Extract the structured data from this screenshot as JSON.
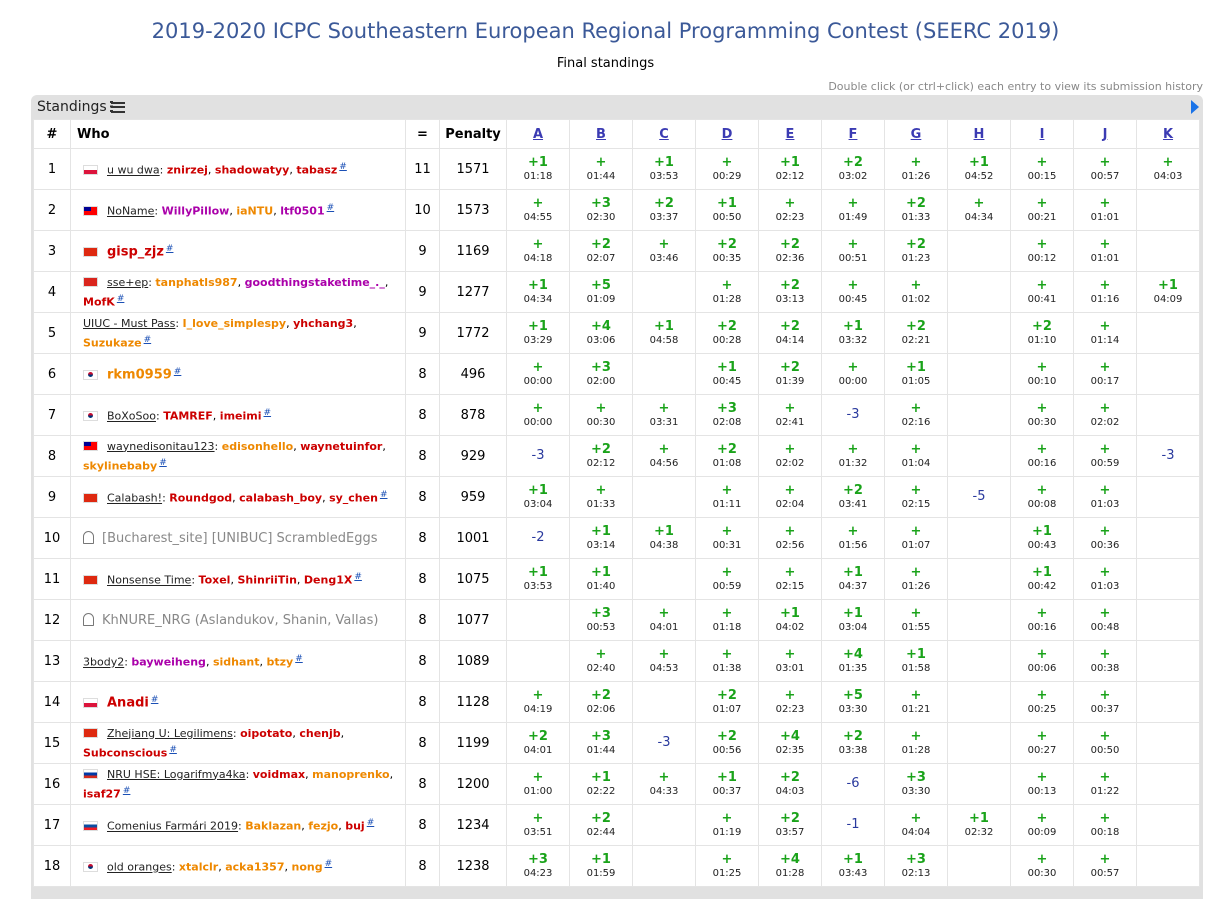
{
  "title": "2019-2020 ICPC Southeastern European Regional Programming Contest (SEERC 2019)",
  "subtitle": "Final standings",
  "hint": "Double click (or ctrl+click) each entry to view its submission history",
  "panel": {
    "label": "Standings",
    "menu_icon": "list-icon",
    "next_icon": "arrow-right-icon"
  },
  "columns": {
    "rank": "#",
    "who": "Who",
    "solved": "=",
    "penalty": "Penalty"
  },
  "problems": [
    "A",
    "B",
    "C",
    "D",
    "E",
    "F",
    "G",
    "H",
    "I",
    "J",
    "K"
  ],
  "colors": {
    "title": "#3b5998",
    "accepted": "#1aa31a",
    "rejected": "#2a3a9e",
    "red_rating": "#dd0000",
    "orange_rating": "#ee8800",
    "purple_rating": "#aa00aa"
  },
  "rows": [
    {
      "rank": "1",
      "flag": "pl",
      "team": "u wu dwa",
      "members": [
        {
          "n": "znirzej",
          "c": "#cc0000"
        },
        {
          "n": "shadowatyy",
          "c": "#cc0000"
        },
        {
          "n": "tabasz",
          "c": "#cc0000"
        }
      ],
      "solved": "11",
      "penalty": "1571",
      "cells": [
        [
          "+1",
          "01:18"
        ],
        [
          "+",
          "01:44"
        ],
        [
          "+1",
          "03:53"
        ],
        [
          "+",
          "00:29"
        ],
        [
          "+1",
          "02:12"
        ],
        [
          "+2",
          "03:02"
        ],
        [
          "+",
          "01:26"
        ],
        [
          "+1",
          "04:52"
        ],
        [
          "+",
          "00:15"
        ],
        [
          "+",
          "00:57"
        ],
        [
          "+",
          "04:03"
        ]
      ]
    },
    {
      "rank": "2",
      "flag": "tw",
      "team": "NoName",
      "members": [
        {
          "n": "WillyPillow",
          "c": "#aa00aa"
        },
        {
          "n": "iaNTU",
          "c": "#ee8800"
        },
        {
          "n": "ltf0501",
          "c": "#aa00aa"
        }
      ],
      "solved": "10",
      "penalty": "1573",
      "cells": [
        [
          "+",
          "04:55"
        ],
        [
          "+3",
          "02:30"
        ],
        [
          "+2",
          "03:37"
        ],
        [
          "+1",
          "00:50"
        ],
        [
          "+",
          "02:23"
        ],
        [
          "+",
          "01:49"
        ],
        [
          "+2",
          "01:33"
        ],
        [
          "+",
          "04:34"
        ],
        [
          "+",
          "00:21"
        ],
        [
          "+",
          "01:01"
        ],
        null
      ]
    },
    {
      "rank": "3",
      "flag": "cn",
      "team": "gisp_zjz",
      "big": true,
      "team_color": "#cc0000",
      "members": [],
      "solved": "9",
      "penalty": "1169",
      "cells": [
        [
          "+",
          "04:18"
        ],
        [
          "+2",
          "02:07"
        ],
        [
          "+",
          "03:46"
        ],
        [
          "+2",
          "00:35"
        ],
        [
          "+2",
          "02:36"
        ],
        [
          "+",
          "00:51"
        ],
        [
          "+2",
          "01:23"
        ],
        null,
        [
          "+",
          "00:12"
        ],
        [
          "+",
          "01:01"
        ],
        null
      ]
    },
    {
      "rank": "4",
      "flag": "vn",
      "team": "sse+ep",
      "members": [
        {
          "n": "tanphatls987",
          "c": "#ee8800"
        },
        {
          "n": "goodthingstaketime_._",
          "c": "#aa00aa"
        },
        {
          "n": "MofK",
          "c": "#cc0000"
        }
      ],
      "solved": "9",
      "penalty": "1277",
      "cells": [
        [
          "+1",
          "04:34"
        ],
        [
          "+5",
          "01:09"
        ],
        null,
        [
          "+",
          "01:28"
        ],
        [
          "+2",
          "03:13"
        ],
        [
          "+",
          "00:45"
        ],
        [
          "+",
          "01:02"
        ],
        null,
        [
          "+",
          "00:41"
        ],
        [
          "+",
          "01:16"
        ],
        [
          "+1",
          "04:09"
        ]
      ]
    },
    {
      "rank": "5",
      "flag": "",
      "team": "UIUC - Must Pass",
      "members": [
        {
          "n": "I_love_simplespy",
          "c": "#ee8800"
        },
        {
          "n": "yhchang3",
          "c": "#cc0000"
        },
        {
          "n": "Suzukaze",
          "c": "#ee8800"
        }
      ],
      "solved": "9",
      "penalty": "1772",
      "cells": [
        [
          "+1",
          "03:29"
        ],
        [
          "+4",
          "03:06"
        ],
        [
          "+1",
          "04:58"
        ],
        [
          "+2",
          "00:28"
        ],
        [
          "+2",
          "04:14"
        ],
        [
          "+1",
          "03:32"
        ],
        [
          "+2",
          "02:21"
        ],
        null,
        [
          "+2",
          "01:10"
        ],
        [
          "+",
          "01:14"
        ],
        null
      ]
    },
    {
      "rank": "6",
      "flag": "kr",
      "team": "rkm0959",
      "big": true,
      "team_color": "#ee8800",
      "members": [],
      "solved": "8",
      "penalty": "496",
      "cells": [
        [
          "+",
          "00:00"
        ],
        [
          "+3",
          "02:00"
        ],
        null,
        [
          "+1",
          "00:45"
        ],
        [
          "+2",
          "01:39"
        ],
        [
          "+",
          "00:00"
        ],
        [
          "+1",
          "01:05"
        ],
        null,
        [
          "+",
          "00:10"
        ],
        [
          "+",
          "00:17"
        ],
        null
      ]
    },
    {
      "rank": "7",
      "flag": "kr",
      "team": "BoXoSoo",
      "members": [
        {
          "n": "TAMREF",
          "c": "#cc0000"
        },
        {
          "n": "imeimi",
          "c": "#cc0000"
        }
      ],
      "solved": "8",
      "penalty": "878",
      "cells": [
        [
          "+",
          "00:00"
        ],
        [
          "+",
          "00:30"
        ],
        [
          "+",
          "03:31"
        ],
        [
          "+3",
          "02:08"
        ],
        [
          "+",
          "02:41"
        ],
        [
          "-3",
          ""
        ],
        [
          "+",
          "02:16"
        ],
        null,
        [
          "+",
          "00:30"
        ],
        [
          "+",
          "02:02"
        ],
        null
      ]
    },
    {
      "rank": "8",
      "flag": "tw",
      "team": "waynedisonitau123",
      "members": [
        {
          "n": "edisonhello",
          "c": "#ee8800"
        },
        {
          "n": "waynetuinfor",
          "c": "#cc0000"
        },
        {
          "n": "skylinebaby",
          "c": "#ee8800"
        }
      ],
      "solved": "8",
      "penalty": "929",
      "cells": [
        [
          "-3",
          ""
        ],
        [
          "+2",
          "02:12"
        ],
        [
          "+",
          "04:56"
        ],
        [
          "+2",
          "01:08"
        ],
        [
          "+",
          "02:02"
        ],
        [
          "+",
          "01:32"
        ],
        [
          "+",
          "01:04"
        ],
        null,
        [
          "+",
          "00:16"
        ],
        [
          "+",
          "00:59"
        ],
        [
          "-3",
          ""
        ]
      ]
    },
    {
      "rank": "9",
      "flag": "cn",
      "team": "Calabash!",
      "members": [
        {
          "n": "Roundgod",
          "c": "#cc0000"
        },
        {
          "n": "calabash_boy",
          "c": "#cc0000"
        },
        {
          "n": "sy_chen",
          "c": "#cc0000"
        }
      ],
      "solved": "8",
      "penalty": "959",
      "cells": [
        [
          "+1",
          "03:04"
        ],
        [
          "+",
          "01:33"
        ],
        null,
        [
          "+",
          "01:11"
        ],
        [
          "+",
          "02:04"
        ],
        [
          "+2",
          "03:41"
        ],
        [
          "+",
          "02:15"
        ],
        [
          "-5",
          ""
        ],
        [
          "+",
          "00:08"
        ],
        [
          "+",
          "01:03"
        ],
        null
      ]
    },
    {
      "rank": "10",
      "flag": "ghost",
      "team": "[Bucharest_site] [UNIBUC] ScrambledEggs",
      "gray": true,
      "members": [],
      "solved": "8",
      "penalty": "1001",
      "cells": [
        [
          "-2",
          ""
        ],
        [
          "+1",
          "03:14"
        ],
        [
          "+1",
          "04:38"
        ],
        [
          "+",
          "00:31"
        ],
        [
          "+",
          "02:56"
        ],
        [
          "+",
          "01:56"
        ],
        [
          "+",
          "01:07"
        ],
        null,
        [
          "+1",
          "00:43"
        ],
        [
          "+",
          "00:36"
        ],
        null
      ]
    },
    {
      "rank": "11",
      "flag": "cn",
      "team": "Nonsense Time",
      "members": [
        {
          "n": "Toxel",
          "c": "#cc0000"
        },
        {
          "n": "ShinriiTin",
          "c": "#cc0000"
        },
        {
          "n": "Deng1X",
          "c": "#cc0000"
        }
      ],
      "solved": "8",
      "penalty": "1075",
      "cells": [
        [
          "+1",
          "03:53"
        ],
        [
          "+1",
          "01:40"
        ],
        null,
        [
          "+",
          "00:59"
        ],
        [
          "+",
          "02:15"
        ],
        [
          "+1",
          "04:37"
        ],
        [
          "+",
          "01:26"
        ],
        null,
        [
          "+1",
          "00:42"
        ],
        [
          "+",
          "01:03"
        ],
        null
      ]
    },
    {
      "rank": "12",
      "flag": "ghost",
      "team": "KhNURE_NRG (Aslandukov, Shanin, Vallas)",
      "gray": true,
      "members": [],
      "solved": "8",
      "penalty": "1077",
      "cells": [
        null,
        [
          "+3",
          "00:53"
        ],
        [
          "+",
          "04:01"
        ],
        [
          "+",
          "01:18"
        ],
        [
          "+1",
          "04:02"
        ],
        [
          "+1",
          "03:04"
        ],
        [
          "+",
          "01:55"
        ],
        null,
        [
          "+",
          "00:16"
        ],
        [
          "+",
          "00:48"
        ],
        null
      ]
    },
    {
      "rank": "13",
      "flag": "",
      "team": "3body2",
      "members": [
        {
          "n": "bayweiheng",
          "c": "#aa00aa"
        },
        {
          "n": "sidhant",
          "c": "#ee8800"
        },
        {
          "n": "btzy",
          "c": "#ee8800"
        }
      ],
      "solved": "8",
      "penalty": "1089",
      "cells": [
        null,
        [
          "+",
          "02:40"
        ],
        [
          "+",
          "04:53"
        ],
        [
          "+",
          "01:38"
        ],
        [
          "+",
          "03:01"
        ],
        [
          "+4",
          "01:35"
        ],
        [
          "+1",
          "01:58"
        ],
        null,
        [
          "+",
          "00:06"
        ],
        [
          "+",
          "00:38"
        ],
        null
      ]
    },
    {
      "rank": "14",
      "flag": "pl",
      "team": "Anadi",
      "big": true,
      "team_color": "#cc0000",
      "members": [],
      "solved": "8",
      "penalty": "1128",
      "cells": [
        [
          "+",
          "04:19"
        ],
        [
          "+2",
          "02:06"
        ],
        null,
        [
          "+2",
          "01:07"
        ],
        [
          "+",
          "02:23"
        ],
        [
          "+5",
          "03:30"
        ],
        [
          "+",
          "01:21"
        ],
        null,
        [
          "+",
          "00:25"
        ],
        [
          "+",
          "00:37"
        ],
        null
      ]
    },
    {
      "rank": "15",
      "flag": "cn",
      "team": "Zhejiang U: Legilimens",
      "members": [
        {
          "n": "oipotato",
          "c": "#cc0000"
        },
        {
          "n": "chenjb",
          "c": "#cc0000"
        },
        {
          "n": "Subconscious",
          "c": "#cc0000"
        }
      ],
      "solved": "8",
      "penalty": "1199",
      "cells": [
        [
          "+2",
          "04:01"
        ],
        [
          "+3",
          "01:44"
        ],
        [
          "-3",
          ""
        ],
        [
          "+2",
          "00:56"
        ],
        [
          "+4",
          "02:35"
        ],
        [
          "+2",
          "03:38"
        ],
        [
          "+",
          "01:28"
        ],
        null,
        [
          "+",
          "00:27"
        ],
        [
          "+",
          "00:50"
        ],
        null
      ]
    },
    {
      "rank": "16",
      "flag": "ru",
      "team": "NRU HSE: Logarifmya4ka",
      "members": [
        {
          "n": "voidmax",
          "c": "#cc0000"
        },
        {
          "n": "manoprenko",
          "c": "#ee8800"
        },
        {
          "n": "isaf27",
          "c": "#cc0000"
        }
      ],
      "solved": "8",
      "penalty": "1200",
      "cells": [
        [
          "+",
          "01:00"
        ],
        [
          "+1",
          "02:22"
        ],
        [
          "+",
          "04:33"
        ],
        [
          "+1",
          "00:37"
        ],
        [
          "+2",
          "04:03"
        ],
        [
          "-6",
          ""
        ],
        [
          "+3",
          "03:30"
        ],
        null,
        [
          "+",
          "00:13"
        ],
        [
          "+",
          "01:22"
        ],
        null
      ]
    },
    {
      "rank": "17",
      "flag": "sk",
      "team": "Comenius Farmári 2019",
      "members": [
        {
          "n": "Baklazan",
          "c": "#ee8800"
        },
        {
          "n": "fezjo",
          "c": "#ee8800"
        },
        {
          "n": "buj",
          "c": "#cc0000"
        }
      ],
      "solved": "8",
      "penalty": "1234",
      "cells": [
        [
          "+",
          "03:51"
        ],
        [
          "+2",
          "02:44"
        ],
        null,
        [
          "+",
          "01:19"
        ],
        [
          "+2",
          "03:57"
        ],
        [
          "-1",
          ""
        ],
        [
          "+",
          "04:04"
        ],
        [
          "+1",
          "02:32"
        ],
        [
          "+",
          "00:09"
        ],
        [
          "+",
          "00:18"
        ],
        null
      ]
    },
    {
      "rank": "18",
      "flag": "kr",
      "team": "old oranges",
      "members": [
        {
          "n": "xtalclr",
          "c": "#ee8800"
        },
        {
          "n": "acka1357",
          "c": "#ee8800"
        },
        {
          "n": "nong",
          "c": "#ee8800"
        }
      ],
      "solved": "8",
      "penalty": "1238",
      "cells": [
        [
          "+3",
          "04:23"
        ],
        [
          "+1",
          "01:59"
        ],
        null,
        [
          "+",
          "01:25"
        ],
        [
          "+4",
          "01:28"
        ],
        [
          "+1",
          "03:43"
        ],
        [
          "+3",
          "02:13"
        ],
        null,
        [
          "+",
          "00:30"
        ],
        [
          "+",
          "00:57"
        ],
        null
      ]
    }
  ]
}
